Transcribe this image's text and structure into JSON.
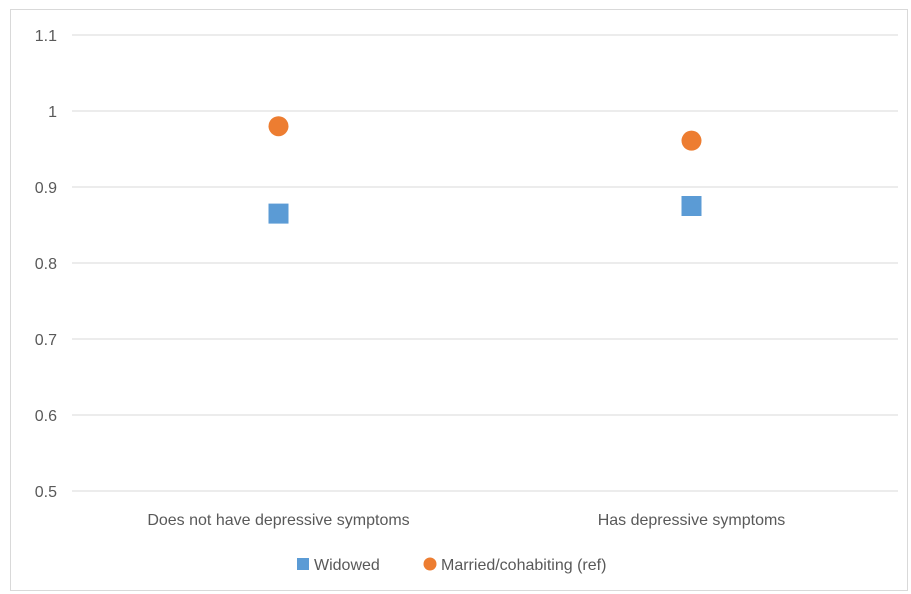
{
  "chart_data": {
    "type": "scatter",
    "categories": [
      "Does not have depressive symptoms",
      "Has depressive symptoms"
    ],
    "series": [
      {
        "name": "Widowed",
        "marker": "square",
        "color": "#5B9BD5",
        "values": [
          0.865,
          0.875
        ]
      },
      {
        "name": "Married/cohabiting (ref)",
        "marker": "circle",
        "color": "#ED7D31",
        "values": [
          0.98,
          0.961
        ]
      }
    ],
    "yticks": [
      "0.5",
      "0.6",
      "0.7",
      "0.8",
      "0.9",
      "1",
      "1.1"
    ],
    "ylim": [
      0.5,
      1.1
    ],
    "grid": true,
    "legend_position": "bottom"
  }
}
